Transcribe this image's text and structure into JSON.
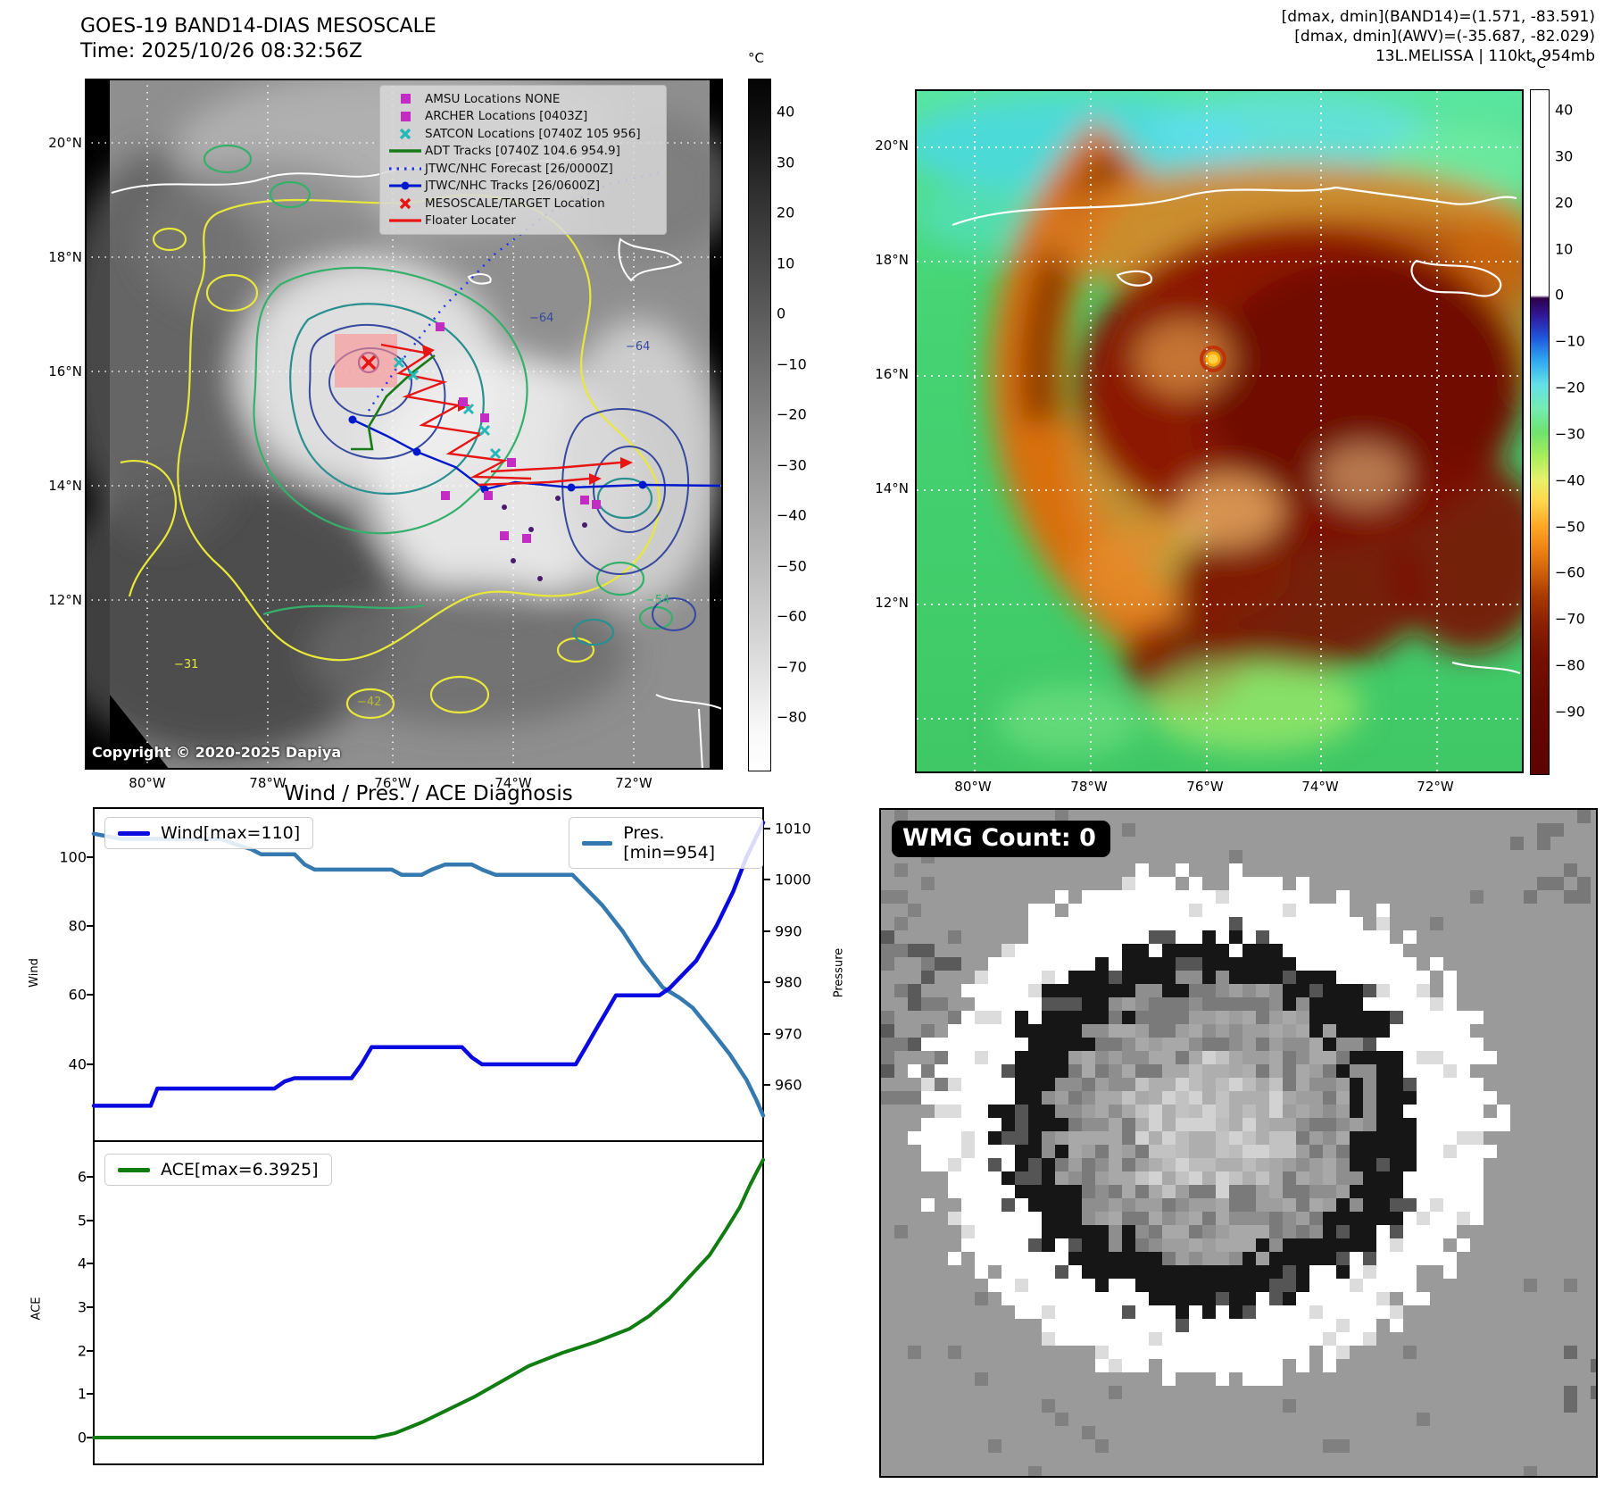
{
  "left_panel": {
    "title": "GOES-19 BAND14-DIAS MESOSCALE",
    "subtitle": "Time: 2025/10/26 08:32:56Z",
    "copyright": "Copyright © 2020-2025 Dapiya",
    "legend": [
      {
        "label": "AMSU Locations NONE",
        "marker": "magenta-square"
      },
      {
        "label": "ARCHER Locations [0403Z]",
        "marker": "magenta-square"
      },
      {
        "label": "SATCON Locations [0740Z 105 956]",
        "marker": "cyan-x"
      },
      {
        "label": "ADT Tracks [0740Z 104.6 954.9]",
        "marker": "green-line"
      },
      {
        "label": "JTWC/NHC Forecast [26/0000Z]",
        "marker": "blue-dotted-line"
      },
      {
        "label": "JTWC/NHC Tracks [26/0600Z]",
        "marker": "blue-line-dot"
      },
      {
        "label": "MESOSCALE/TARGET Location",
        "marker": "red-x"
      },
      {
        "label": "Floater Locater",
        "marker": "red-line"
      }
    ],
    "lat_ticks": [
      "20°N",
      "18°N",
      "16°N",
      "14°N",
      "12°N"
    ],
    "lon_ticks": [
      "80°W",
      "78°W",
      "76°W",
      "74°W",
      "72°W"
    ],
    "colorbar": {
      "unit": "°C",
      "ticks": [
        "40",
        "30",
        "20",
        "10",
        "0",
        "−10",
        "−20",
        "−30",
        "−40",
        "−50",
        "−60",
        "−70",
        "−80"
      ]
    },
    "contour_labels": [
      "−64",
      "−64",
      "−54",
      "−42",
      "−31"
    ]
  },
  "right_panel": {
    "info_lines": [
      "[dmax, dmin](BAND14)=(1.571, -83.591)",
      "[dmax, dmin](AWV)=(-35.687, -82.029)",
      "13L.MELISSA | 110kt, 954mb"
    ],
    "lat_ticks": [
      "20°N",
      "18°N",
      "16°N",
      "14°N",
      "12°N"
    ],
    "lon_ticks": [
      "80°W",
      "78°W",
      "76°W",
      "74°W",
      "72°W"
    ],
    "colorbar": {
      "unit": "°C",
      "ticks": [
        "40",
        "30",
        "20",
        "10",
        "0",
        "−10",
        "−20",
        "−30",
        "−40",
        "−50",
        "−60",
        "−70",
        "−80",
        "−90"
      ]
    }
  },
  "charts": {
    "title": "Wind / Pres. / ACE Diagnosis"
  },
  "chart_data": [
    {
      "type": "line",
      "panel": "wind_pressure",
      "xlabel": "",
      "series": [
        {
          "name": "Wind[max=110]",
          "ylabel": "Wind",
          "axis": "left",
          "color": "#0a0ae0",
          "ylim": [
            20,
            115
          ],
          "yticks": [
            100,
            80,
            60,
            40
          ],
          "points": [
            [
              0,
              28
            ],
            [
              0.085,
              28
            ],
            [
              0.095,
              33
            ],
            [
              0.27,
              33
            ],
            [
              0.285,
              35
            ],
            [
              0.3,
              36
            ],
            [
              0.385,
              36
            ],
            [
              0.4,
              40
            ],
            [
              0.415,
              45
            ],
            [
              0.55,
              45
            ],
            [
              0.565,
              42
            ],
            [
              0.58,
              40
            ],
            [
              0.72,
              40
            ],
            [
              0.735,
              45
            ],
            [
              0.75,
              50
            ],
            [
              0.765,
              55
            ],
            [
              0.78,
              60
            ],
            [
              0.845,
              60
            ],
            [
              0.86,
              62
            ],
            [
              0.9,
              70
            ],
            [
              0.93,
              80
            ],
            [
              0.955,
              90
            ],
            [
              0.975,
              100
            ],
            [
              1.0,
              110
            ]
          ]
        },
        {
          "name": "Pres.[min=954]",
          "ylabel": "Pressure",
          "axis": "right",
          "color": "#3579b1",
          "ylim": [
            952,
            1012
          ],
          "yticks": [
            1010,
            1000,
            990,
            980,
            970,
            960
          ],
          "points": [
            [
              0,
              1009
            ],
            [
              0.04,
              1008
            ],
            [
              0.19,
              1008
            ],
            [
              0.21,
              1007
            ],
            [
              0.235,
              1006
            ],
            [
              0.25,
              1005
            ],
            [
              0.3,
              1005
            ],
            [
              0.315,
              1003
            ],
            [
              0.33,
              1002
            ],
            [
              0.445,
              1002
            ],
            [
              0.46,
              1001
            ],
            [
              0.49,
              1001
            ],
            [
              0.505,
              1002
            ],
            [
              0.525,
              1003
            ],
            [
              0.565,
              1003
            ],
            [
              0.58,
              1002
            ],
            [
              0.6,
              1001
            ],
            [
              0.715,
              1001
            ],
            [
              0.73,
              999
            ],
            [
              0.76,
              995
            ],
            [
              0.79,
              990
            ],
            [
              0.82,
              984
            ],
            [
              0.85,
              979
            ],
            [
              0.875,
              977
            ],
            [
              0.895,
              975
            ],
            [
              0.92,
              971
            ],
            [
              0.95,
              966
            ],
            [
              0.975,
              961
            ],
            [
              0.99,
              957
            ],
            [
              1.0,
              954
            ]
          ]
        }
      ]
    },
    {
      "type": "line",
      "panel": "ace",
      "xlabel": "",
      "series": [
        {
          "name": "ACE[max=6.3925]",
          "ylabel": "ACE",
          "color": "#0f7d0f",
          "ylim": [
            -0.2,
            6.6
          ],
          "yticks": [
            6,
            5,
            4,
            3,
            2,
            1,
            0
          ],
          "points": [
            [
              0,
              0
            ],
            [
              0.42,
              0
            ],
            [
              0.45,
              0.1
            ],
            [
              0.49,
              0.35
            ],
            [
              0.53,
              0.65
            ],
            [
              0.57,
              0.95
            ],
            [
              0.61,
              1.3
            ],
            [
              0.65,
              1.65
            ],
            [
              0.7,
              1.95
            ],
            [
              0.75,
              2.2
            ],
            [
              0.8,
              2.5
            ],
            [
              0.83,
              2.8
            ],
            [
              0.86,
              3.2
            ],
            [
              0.89,
              3.7
            ],
            [
              0.92,
              4.2
            ],
            [
              0.945,
              4.8
            ],
            [
              0.965,
              5.3
            ],
            [
              0.98,
              5.8
            ],
            [
              0.99,
              6.1
            ],
            [
              1.0,
              6.3925
            ]
          ]
        }
      ]
    }
  ],
  "wmg": {
    "label": "WMG Count: 0"
  }
}
